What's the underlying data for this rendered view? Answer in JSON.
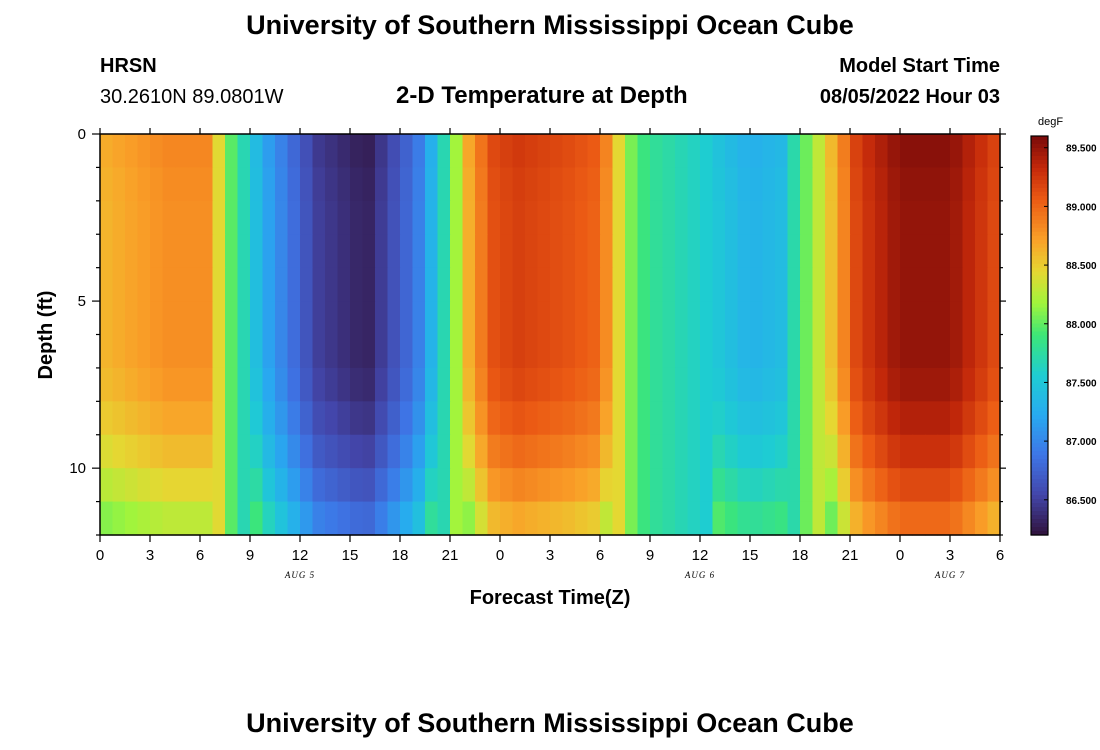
{
  "header": {
    "title": "University of Southern Mississippi Ocean Cube",
    "station": "HRSN",
    "coords": "30.2610N  89.0801W",
    "subtitle": "2-D Temperature at Depth",
    "model_start_label": "Model Start Time",
    "model_start_value": "08/05/2022 Hour 03"
  },
  "footer": {
    "title": "University of Southern Mississippi Ocean Cube"
  },
  "chart_data": {
    "type": "heatmap",
    "title": "2-D Temperature at Depth",
    "xlabel": "Forecast Time(Z)",
    "ylabel": "Depth (ft)",
    "x_ticks": [
      "0",
      "3",
      "6",
      "9",
      "12",
      "15",
      "18",
      "21",
      "0",
      "3",
      "6",
      "9",
      "12",
      "15",
      "18",
      "21",
      "0",
      "3",
      "6"
    ],
    "x_range_hours": [
      0,
      54
    ],
    "day_labels": [
      {
        "label": "AUG 5",
        "hour": 12
      },
      {
        "label": "AUG 6",
        "hour": 36
      },
      {
        "label": "AUG 7",
        "hour": 51
      }
    ],
    "y_ticks": [
      0,
      5,
      10
    ],
    "y_range_ft": [
      0,
      12
    ],
    "colorbar": {
      "unit": "degF",
      "min": 86.2,
      "max": 89.6,
      "tick_values": [
        89.5,
        89.0,
        88.5,
        88.0,
        87.5,
        87.0,
        86.5
      ],
      "tick_labels": [
        "89.500",
        "89.000",
        "88.500",
        "88.000",
        "87.500",
        "87.000",
        "86.500"
      ]
    },
    "hour_profile": [
      {
        "h": 0,
        "t": 88.6
      },
      {
        "h": 4,
        "t": 88.8
      },
      {
        "h": 6.5,
        "t": 88.8
      },
      {
        "h": 8,
        "t": 87.9
      },
      {
        "h": 10,
        "t": 87.2
      },
      {
        "h": 13,
        "t": 86.5
      },
      {
        "h": 16,
        "t": 86.3
      },
      {
        "h": 19,
        "t": 86.9
      },
      {
        "h": 20.5,
        "t": 87.6
      },
      {
        "h": 22,
        "t": 88.6
      },
      {
        "h": 23.5,
        "t": 89.1
      },
      {
        "h": 25,
        "t": 89.2
      },
      {
        "h": 28,
        "t": 89.1
      },
      {
        "h": 30,
        "t": 89.0
      },
      {
        "h": 31,
        "t": 88.5
      },
      {
        "h": 32,
        "t": 88.0
      },
      {
        "h": 33,
        "t": 87.8
      },
      {
        "h": 36,
        "t": 87.6
      },
      {
        "h": 39,
        "t": 87.3
      },
      {
        "h": 41,
        "t": 87.4
      },
      {
        "h": 42,
        "t": 87.9
      },
      {
        "h": 44,
        "t": 88.6
      },
      {
        "h": 45.5,
        "t": 89.2
      },
      {
        "h": 48,
        "t": 89.5
      },
      {
        "h": 51,
        "t": 89.5
      },
      {
        "h": 54,
        "t": 89.1
      }
    ],
    "depth_profile": [
      {
        "d": 0,
        "a": 0.05
      },
      {
        "d": 2,
        "a": 0.0
      },
      {
        "d": 4,
        "a": 0.0
      },
      {
        "d": 7,
        "a": 0.0
      },
      {
        "d": 9,
        "a": -0.15
      },
      {
        "d": 10.5,
        "a": -0.35
      },
      {
        "d": 12,
        "a": -0.6
      }
    ]
  }
}
